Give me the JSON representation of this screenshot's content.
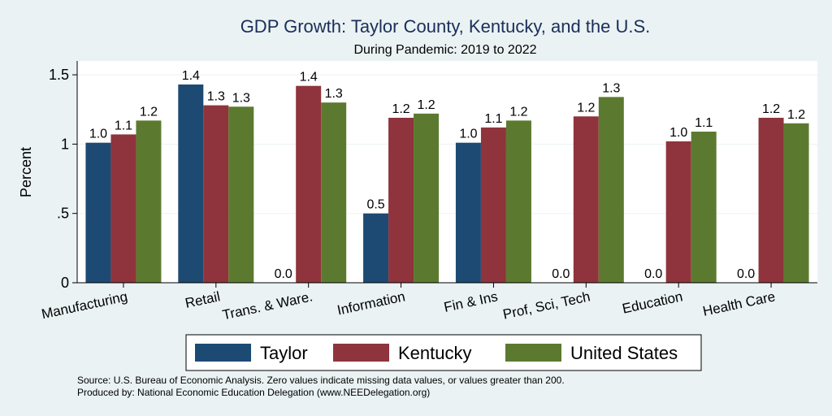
{
  "chart_data": {
    "type": "bar",
    "title": "GDP Growth: Taylor County, Kentucky, and the U.S.",
    "subtitle": "During Pandemic: 2019 to 2022",
    "xlabel": "",
    "ylabel": "Percent",
    "ylim": [
      0,
      1.6
    ],
    "yticks": [
      0,
      0.5,
      1,
      1.5
    ],
    "ytick_labels": [
      "0",
      ".5",
      "1",
      "1.5"
    ],
    "grid": true,
    "legend_position": "bottom",
    "categories": [
      "Manufacturing",
      "Retail",
      "Trans. & Ware.",
      "Information",
      "Fin & Ins",
      "Prof, Sci, Tech",
      "Education",
      "Health Care"
    ],
    "series": [
      {
        "name": "Taylor",
        "color": "#1c4a73",
        "values": [
          1.01,
          1.43,
          0.0,
          0.5,
          1.01,
          0.0,
          0.0,
          0.0
        ],
        "labels": [
          "1.0",
          "1.4",
          "0.0",
          "0.5",
          "1.0",
          "0.0",
          "0.0",
          "0.0"
        ]
      },
      {
        "name": "Kentucky",
        "color": "#8f343c",
        "values": [
          1.07,
          1.28,
          1.42,
          1.19,
          1.12,
          1.2,
          1.02,
          1.19
        ],
        "labels": [
          "1.1",
          "1.3",
          "1.4",
          "1.2",
          "1.1",
          "1.2",
          "1.0",
          "1.2"
        ]
      },
      {
        "name": "United States",
        "color": "#5c7a2f",
        "values": [
          1.17,
          1.27,
          1.3,
          1.22,
          1.17,
          1.34,
          1.09,
          1.15
        ],
        "labels": [
          "1.2",
          "1.3",
          "1.3",
          "1.2",
          "1.2",
          "1.3",
          "1.1",
          "1.2"
        ]
      }
    ],
    "notes": [
      "Source: U.S. Bureau of Economic Analysis. Zero values indicate missing data values, or values greater than 200.",
      "Produced by: National Economic Education Delegation (www.NEEDelegation.org)"
    ]
  }
}
